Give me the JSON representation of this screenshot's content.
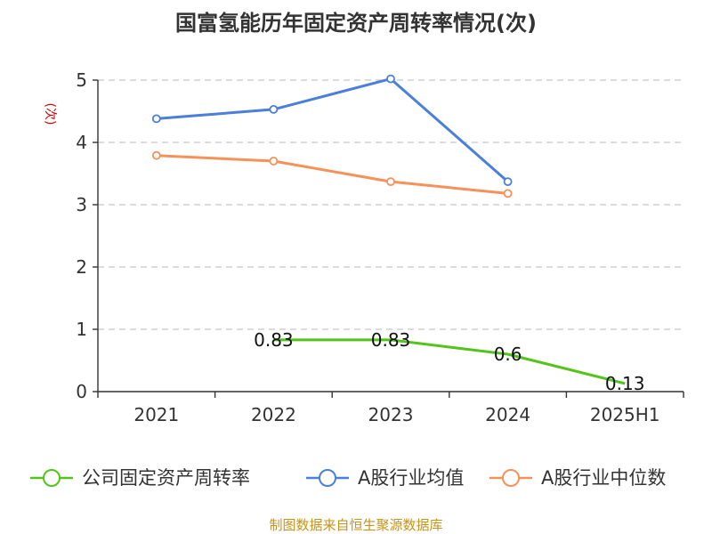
{
  "chart_data": {
    "type": "line",
    "title": "国富氢能历年固定资产周转率情况(次)",
    "ylabel": "(次)",
    "xlabel": "",
    "categories": [
      "2021",
      "2022",
      "2023",
      "2024",
      "2025H1"
    ],
    "ylim": [
      0,
      5
    ],
    "yticks": [
      0,
      1,
      2,
      3,
      4,
      5
    ],
    "grid": true,
    "legend_position": "bottom",
    "series": [
      {
        "name": "公司固定资产周转率",
        "color": "#52c41a",
        "values": [
          null,
          0.83,
          0.83,
          0.6,
          0.13
        ],
        "labels": [
          "",
          "0.83",
          "0.83",
          "0.6",
          "0.13"
        ]
      },
      {
        "name": "A股行业均值",
        "color": "#4a7fdb",
        "values": [
          4.38,
          4.53,
          5.02,
          3.37,
          null
        ]
      },
      {
        "name": "A股行业中位数",
        "color": "#f7915a",
        "values": [
          3.79,
          3.7,
          3.37,
          3.18,
          null
        ]
      }
    ]
  },
  "footer": {
    "source": "制图数据来自恒生聚源数据库"
  }
}
